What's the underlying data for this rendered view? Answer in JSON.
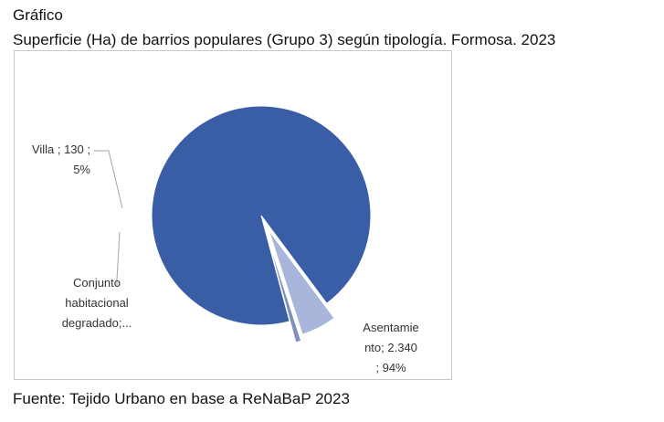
{
  "header": {
    "label": "Gráfico",
    "title": "Superficie (Ha) de barrios populares (Grupo 3) según tipología. Formosa. 2023"
  },
  "footer": {
    "source": "Fuente: Tejido Urbano en base a ReNaBaP 2023"
  },
  "chart_data": {
    "type": "pie",
    "title": "Superficie (Ha) de barrios populares (Grupo 3) según tipología. Formosa. 2023",
    "legend": "none",
    "slices": [
      {
        "name": "Asentamiento",
        "value": 2340,
        "percent": 94,
        "color": "#3a5ea6",
        "label_lines": [
          "Asentamie",
          "nto;  2.340",
          "; 94%"
        ]
      },
      {
        "name": "Villa",
        "value": 130,
        "percent": 5,
        "color": "#a8b6dc",
        "label_lines": [
          "Villa ;  130 ;",
          "5%"
        ]
      },
      {
        "name": "Conjunto habitacional degradado",
        "value": 20,
        "percent": 1,
        "color": "#7f8fbf",
        "label_lines": [
          "Conjunto",
          "habitacional",
          "degradado;..."
        ]
      }
    ]
  }
}
